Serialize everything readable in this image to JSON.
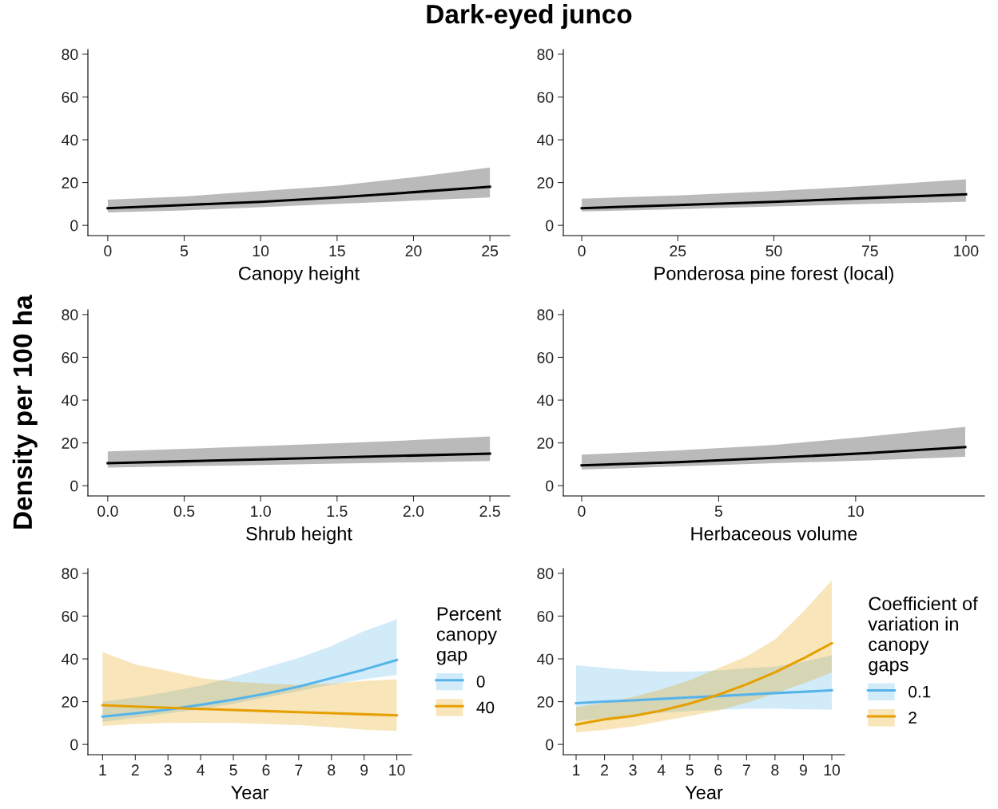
{
  "chart_data": [
    {
      "type": "line",
      "title": "Dark-eyed junco",
      "ylabel": "Density per 100 ha",
      "xlabel": "Canopy height",
      "xlim": [
        -1.3,
        26.3
      ],
      "xticks": [
        0,
        5,
        10,
        15,
        20,
        25
      ],
      "ylim": [
        -4.8,
        82.2
      ],
      "yticks": [
        0,
        20,
        40,
        60,
        80
      ],
      "grid": false,
      "legend": false,
      "series": [
        {
          "color": "#000000",
          "x": [
            0,
            5,
            10,
            15,
            20,
            25
          ],
          "values": [
            8,
            9.5,
            11,
            13,
            15.5,
            18
          ],
          "lower": [
            6,
            7,
            8.5,
            10,
            11.5,
            13
          ],
          "upper": [
            12,
            13.5,
            16,
            18.5,
            22.5,
            27
          ]
        }
      ]
    },
    {
      "type": "line",
      "xlabel": "Ponderosa pine forest (local)",
      "xlim": [
        -4.8,
        104.8
      ],
      "xticks": [
        0,
        25,
        50,
        75,
        100
      ],
      "ylim": [
        -4.8,
        82.2
      ],
      "yticks": [
        0,
        20,
        40,
        60,
        80
      ],
      "grid": false,
      "legend": false,
      "series": [
        {
          "color": "#000000",
          "x": [
            0,
            25,
            50,
            75,
            100
          ],
          "values": [
            8,
            9.5,
            11,
            12.8,
            14.5
          ],
          "lower": [
            6.5,
            7.5,
            8.8,
            10,
            11
          ],
          "upper": [
            12.5,
            14,
            16,
            18.5,
            21.5
          ]
        }
      ]
    },
    {
      "type": "line",
      "xlabel": "Shrub height",
      "xlim": [
        -0.13,
        2.63
      ],
      "xticks": [
        {
          "value": 0,
          "label": "0.0"
        },
        0.5,
        {
          "value": 1,
          "label": "1.0"
        },
        1.5,
        {
          "value": 2,
          "label": "2.0"
        },
        2.5
      ],
      "ylim": [
        -4.8,
        82.2
      ],
      "yticks": [
        0,
        20,
        40,
        60,
        80
      ],
      "grid": false,
      "legend": false,
      "series": [
        {
          "color": "#000000",
          "x": [
            0,
            0.5,
            1,
            1.5,
            2,
            2.5
          ],
          "values": [
            10.5,
            11.4,
            12.3,
            13.2,
            14.1,
            15
          ],
          "lower": [
            8.5,
            9.1,
            9.7,
            10.3,
            10.9,
            11.5
          ],
          "upper": [
            16,
            17.2,
            18.5,
            19.8,
            21.3,
            23
          ]
        }
      ]
    },
    {
      "type": "line",
      "xlabel": "Herbaceous volume",
      "xlim": [
        -0.67,
        14.7
      ],
      "xticks": [
        0,
        5,
        10
      ],
      "ylim": [
        -4.8,
        82.2
      ],
      "yticks": [
        0,
        20,
        40,
        60,
        80
      ],
      "grid": false,
      "legend": false,
      "series": [
        {
          "color": "#000000",
          "x": [
            0,
            3.5,
            7,
            10.5,
            14
          ],
          "values": [
            9.5,
            11,
            13,
            15.3,
            18
          ],
          "lower": [
            7.5,
            9,
            10.5,
            11.8,
            13.5
          ],
          "upper": [
            14.5,
            16.5,
            19,
            23,
            27.5
          ]
        }
      ]
    },
    {
      "type": "line",
      "xlabel": "Year",
      "legend_title": "Percent\ncanopy\ngap",
      "xlim": [
        0.55,
        10.45
      ],
      "xticks": [
        1,
        2,
        3,
        4,
        5,
        6,
        7,
        8,
        9,
        10
      ],
      "ylim": [
        -4.8,
        82.2
      ],
      "yticks": [
        0,
        20,
        40,
        60,
        80
      ],
      "grid": false,
      "legend": "right",
      "series": [
        {
          "name": "0",
          "color": "#56b4e9",
          "x": [
            1,
            2,
            3,
            4,
            5,
            6,
            7,
            8,
            9,
            10
          ],
          "values": [
            13,
            14.5,
            16.3,
            18.5,
            21,
            23.8,
            27,
            31,
            35,
            39.5
          ],
          "lower": [
            10.5,
            12.5,
            14.5,
            16.5,
            19,
            22,
            25,
            28,
            30.5,
            32.5
          ],
          "upper": [
            20,
            22,
            24.5,
            27.5,
            31.5,
            36,
            40.5,
            46,
            53,
            58.5
          ]
        },
        {
          "name": "40",
          "color": "#e69f00",
          "x": [
            1,
            2,
            3,
            4,
            5,
            6,
            7,
            8,
            9,
            10
          ],
          "values": [
            18.3,
            17.7,
            17.1,
            16.6,
            16.1,
            15.6,
            15.1,
            14.6,
            14.1,
            13.6
          ],
          "lower": [
            8.6,
            9.6,
            10,
            10.1,
            10,
            9.6,
            9,
            8.1,
            6.9,
            6.3
          ],
          "upper": [
            43.2,
            37.4,
            34.3,
            31,
            29.4,
            28.4,
            27.9,
            28.4,
            29.6,
            30.4
          ]
        }
      ]
    },
    {
      "type": "line",
      "xlabel": "Year",
      "legend_title": "Coefficient of\nvariation in\ncanopy\ngaps",
      "xlim": [
        0.55,
        10.45
      ],
      "xticks": [
        1,
        2,
        3,
        4,
        5,
        6,
        7,
        8,
        9,
        10
      ],
      "ylim": [
        -4.8,
        82.2
      ],
      "yticks": [
        0,
        20,
        40,
        60,
        80
      ],
      "grid": false,
      "legend": "right",
      "series": [
        {
          "name": "0.1",
          "color": "#56b4e9",
          "x": [
            1,
            2,
            3,
            4,
            5,
            6,
            7,
            8,
            9,
            10
          ],
          "values": [
            19.3,
            20,
            20.6,
            21.3,
            22,
            22.6,
            23.3,
            24,
            24.6,
            25.3
          ],
          "lower": [
            10.9,
            12.3,
            13.6,
            14.8,
            15.6,
            16.2,
            16.7,
            16.8,
            16.4,
            16.3
          ],
          "upper": [
            37,
            35.8,
            34.7,
            34,
            34,
            34.6,
            35.6,
            36.4,
            38.6,
            41.7
          ]
        },
        {
          "name": "2",
          "color": "#e69f00",
          "x": [
            1,
            2,
            3,
            4,
            5,
            6,
            7,
            8,
            9,
            10
          ],
          "values": [
            9.3,
            11.7,
            13.3,
            15.8,
            19.1,
            23.2,
            28.1,
            33.7,
            40.2,
            47.3
          ],
          "lower": [
            5.7,
            6.8,
            8.4,
            10.9,
            13.3,
            15.8,
            19.5,
            23.8,
            28.5,
            33.7
          ],
          "upper": [
            17.4,
            19.5,
            22.2,
            25.7,
            30,
            35.6,
            41.1,
            49.1,
            62.1,
            76.7
          ]
        }
      ]
    }
  ]
}
